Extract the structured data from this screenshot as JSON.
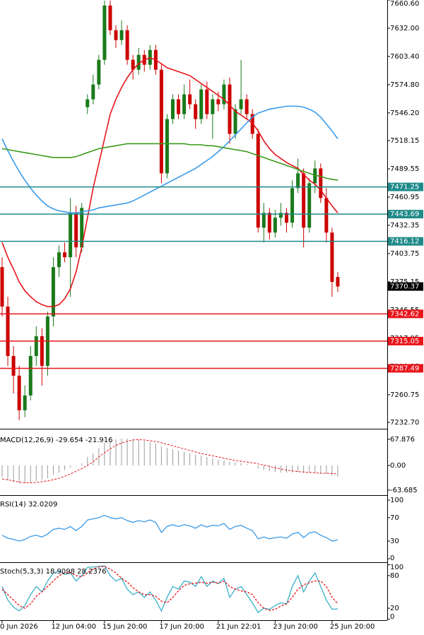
{
  "chart_data": [
    {
      "type": "candlestick",
      "categories": [
        "0 Jun 2026",
        null,
        null,
        null,
        null,
        null,
        null,
        null,
        null,
        "12 Jun 04:00",
        null,
        null,
        null,
        null,
        null,
        null,
        null,
        null,
        "15 Jun 20:00",
        null,
        null,
        null,
        null,
        null,
        null,
        null,
        null,
        null,
        "17 Jun 20:00",
        null,
        null,
        null,
        null,
        null,
        null,
        null,
        null,
        null,
        "21 Jun 22:01",
        null,
        null,
        null,
        null,
        null,
        null,
        null,
        null,
        null,
        "23 Jun 20:00",
        null,
        null,
        null,
        null,
        null,
        null,
        null,
        null,
        null,
        "25 Jun 20:00",
        null
      ],
      "open": [
        7390,
        7350,
        7300,
        7280,
        7245,
        7260,
        7300,
        7320,
        7290,
        7340,
        7390,
        7405,
        7400,
        7445,
        7410,
        7552,
        7560,
        7575,
        7600,
        7655,
        7630,
        7620,
        7630,
        7600,
        7590,
        7605,
        7595,
        7610,
        7590,
        7485,
        7540,
        7560,
        7545,
        7565,
        7555,
        7540,
        7570,
        7545,
        7560,
        7555,
        7575,
        7525,
        7550,
        7560,
        7545,
        7525,
        7430,
        7445,
        7425,
        7440,
        7445,
        7435,
        7470,
        7485,
        7430,
        7475,
        7490,
        7460,
        7425,
        7380
      ],
      "high": [
        7400,
        7360,
        7310,
        7290,
        7270,
        7310,
        7330,
        7328,
        7345,
        7400,
        7412,
        7415,
        7460,
        7452,
        7455,
        7565,
        7585,
        7605,
        7660,
        7660,
        7635,
        7640,
        7635,
        7605,
        7612,
        7610,
        7615,
        7615,
        7595,
        7545,
        7565,
        7565,
        7575,
        7580,
        7560,
        7575,
        7578,
        7565,
        7568,
        7580,
        7582,
        7555,
        7600,
        7565,
        7550,
        7530,
        7455,
        7450,
        7448,
        7455,
        7450,
        7478,
        7500,
        7490,
        7480,
        7498,
        7495,
        7470,
        7430,
        7385
      ],
      "low": [
        7340,
        7290,
        7262,
        7235,
        7238,
        7255,
        7290,
        7270,
        7280,
        7330,
        7380,
        7395,
        7360,
        7400,
        7405,
        7545,
        7555,
        7570,
        7595,
        7625,
        7612,
        7615,
        7595,
        7580,
        7585,
        7588,
        7590,
        7585,
        7475,
        7480,
        7535,
        7540,
        7540,
        7550,
        7530,
        7535,
        7540,
        7520,
        7548,
        7550,
        7515,
        7520,
        7545,
        7540,
        7520,
        7425,
        7415,
        7418,
        7420,
        7432,
        7425,
        7430,
        7465,
        7410,
        7425,
        7465,
        7455,
        7415,
        7360,
        7365
      ],
      "close": [
        7350,
        7300,
        7280,
        7245,
        7260,
        7300,
        7320,
        7290,
        7340,
        7390,
        7405,
        7400,
        7445,
        7410,
        7450,
        7560,
        7575,
        7600,
        7655,
        7630,
        7620,
        7630,
        7600,
        7590,
        7605,
        7595,
        7610,
        7590,
        7485,
        7540,
        7560,
        7545,
        7565,
        7555,
        7540,
        7570,
        7545,
        7560,
        7555,
        7575,
        7525,
        7550,
        7560,
        7545,
        7525,
        7430,
        7445,
        7425,
        7440,
        7445,
        7435,
        7470,
        7485,
        7430,
        7475,
        7490,
        7460,
        7425,
        7375,
        7370.37
      ],
      "up_color": "#1a7a1a",
      "down_color": "#cc0000",
      "series": [
        {
          "color": "#e8141a",
          "values": [
            7415,
            7400,
            7388,
            7375,
            7366,
            7360,
            7355,
            7352,
            7350,
            7350,
            7352,
            7358,
            7368,
            7385,
            7410,
            7440,
            7470,
            7495,
            7520,
            7545,
            7560,
            7572,
            7582,
            7590,
            7596,
            7600,
            7602,
            7600,
            7596,
            7592,
            7590,
            7588,
            7586,
            7584,
            7580,
            7576,
            7572,
            7568,
            7564,
            7560,
            7554,
            7548,
            7544,
            7540,
            7536,
            7528,
            7518,
            7510,
            7504,
            7500,
            7496,
            7493,
            7490,
            7484,
            7478,
            7474,
            7468,
            7460,
            7452,
            7445
          ]
        },
        {
          "color": "#3a9ae8",
          "values": [
            7520,
            7508,
            7497,
            7487,
            7478,
            7470,
            7463,
            7457,
            7452,
            7449,
            7447,
            7446,
            7445,
            7445,
            7446,
            7447,
            7448,
            7450,
            7451,
            7452,
            7453,
            7454,
            7455,
            7457,
            7460,
            7463,
            7466,
            7469,
            7472,
            7475,
            7478,
            7481,
            7484,
            7487,
            7490,
            7494,
            7498,
            7502,
            7507,
            7512,
            7518,
            7524,
            7530,
            7536,
            7542,
            7546,
            7548,
            7550,
            7551,
            7552,
            7553,
            7553,
            7553,
            7552,
            7550,
            7547,
            7542,
            7535,
            7528,
            7520
          ]
        },
        {
          "color": "#3a9a1a",
          "values": [
            7510,
            7509,
            7508,
            7507,
            7506,
            7505,
            7504,
            7503,
            7502,
            7501,
            7501,
            7501,
            7501,
            7502,
            7504,
            7506,
            7508,
            7510,
            7511,
            7512,
            7513,
            7514,
            7515,
            7515,
            7515,
            7515,
            7515,
            7515,
            7515,
            7515,
            7515,
            7515,
            7515,
            7514,
            7514,
            7514,
            7513,
            7513,
            7512,
            7511,
            7510,
            7509,
            7508,
            7507,
            7505,
            7503,
            7501,
            7499,
            7497,
            7495,
            7493,
            7491,
            7489,
            7487,
            7485,
            7483,
            7482,
            7480,
            7479,
            7478
          ]
        }
      ],
      "levels": [
        {
          "value": 7471.25,
          "color": "#1f8a8a"
        },
        {
          "value": 7443.69,
          "color": "#1f8a8a"
        },
        {
          "value": 7416.12,
          "color": "#1f8a8a"
        },
        {
          "value": 7342.62,
          "color": "#e8141a"
        },
        {
          "value": 7315.05,
          "color": "#e8141a"
        },
        {
          "value": 7287.49,
          "color": "#e8141a"
        }
      ],
      "current_price": 7370.37,
      "ylim": [
        7227.7,
        7660.6
      ],
      "yticks": [
        {
          "value": 7660.6,
          "label": "7660.60"
        },
        {
          "value": 7632,
          "label": "7632.00"
        },
        {
          "value": 7603.4,
          "label": "7603.40"
        },
        {
          "value": 7574.8,
          "label": "7574.80"
        },
        {
          "value": 7546.2,
          "label": "7546.20"
        },
        {
          "value": 7518.15,
          "label": "7518.15"
        },
        {
          "value": 7489.55,
          "label": "7489.55"
        },
        {
          "value": 7460.95,
          "label": "7460.95"
        },
        {
          "value": 7432.35,
          "label": "7432.35"
        },
        {
          "value": 7403.75,
          "label": "7403.75"
        },
        {
          "value": 7375.15,
          "label": "7375.15"
        },
        {
          "value": 7346.55,
          "label": "7346.55"
        },
        {
          "value": 7317.95,
          "label": "7317.95"
        },
        {
          "value": 7289.35,
          "label": "7289.35"
        },
        {
          "value": 7260.75,
          "label": "7260.75"
        },
        {
          "value": 7232.7,
          "label": "7232.70"
        }
      ]
    },
    {
      "type": "macd",
      "title": "MACD(12,26,9) -29.654 -21.916",
      "series": [
        {
          "color": "#9a9a9a",
          "values": [
            -30,
            -38,
            -43,
            -46,
            -46,
            -44,
            -40,
            -37,
            -33,
            -25,
            -18,
            -12,
            -5,
            0,
            5,
            22,
            32,
            45,
            58,
            63,
            68,
            70,
            70,
            68,
            66,
            63,
            60,
            57,
            50,
            45,
            42,
            38,
            35,
            32,
            28,
            25,
            22,
            18,
            15,
            13,
            10,
            8,
            6,
            3,
            0,
            -8,
            -12,
            -15,
            -17,
            -18,
            -19,
            -18,
            -17,
            -19,
            -18,
            -18,
            -19,
            -22,
            -26,
            -29.654
          ]
        },
        {
          "color": "#e8141a",
          "values": [
            -35,
            -37,
            -40,
            -43,
            -45,
            -45,
            -44,
            -42,
            -40,
            -37,
            -33,
            -28,
            -22,
            -15,
            -8,
            0,
            10,
            22,
            33,
            43,
            52,
            58,
            63,
            66,
            67,
            66,
            64,
            62,
            59,
            55,
            51,
            47,
            43,
            39,
            35,
            31,
            28,
            25,
            22,
            19,
            16,
            13,
            11,
            9,
            7,
            4,
            1,
            -2,
            -6,
            -9,
            -12,
            -14,
            -16,
            -17,
            -18,
            -19,
            -20,
            -20,
            -21,
            -21.916
          ]
        }
      ],
      "ylim": [
        -75,
        86
      ],
      "yticks": [
        67.876,
        {
          "value": 0,
          "label": "0.00"
        },
        -63.685
      ]
    },
    {
      "type": "line",
      "title": "RSI(14) 32.0209",
      "series": [
        {
          "color": "#3a9ae8",
          "values": [
            40,
            35,
            33,
            30,
            33,
            38,
            40,
            37,
            42,
            50,
            52,
            50,
            55,
            48,
            55,
            66,
            68,
            70,
            74,
            70,
            68,
            70,
            65,
            62,
            65,
            63,
            66,
            62,
            45,
            55,
            58,
            55,
            58,
            56,
            52,
            58,
            54,
            57,
            56,
            60,
            50,
            55,
            57,
            52,
            48,
            34,
            37,
            34,
            36,
            37,
            35,
            42,
            45,
            36,
            44,
            46,
            40,
            36,
            30,
            32.0209
          ]
        }
      ],
      "ylim": [
        -4.8,
        106
      ],
      "yticks": [
        100,
        70,
        30,
        0
      ]
    },
    {
      "type": "line",
      "title": "Stoch(5,3,3) 18.9098 28.2376",
      "series": [
        {
          "color": "#3ab0c8",
          "values": [
            60,
            35,
            22,
            15,
            25,
            45,
            60,
            50,
            70,
            85,
            88,
            82,
            85,
            70,
            80,
            95,
            96,
            97,
            98,
            80,
            70,
            75,
            55,
            45,
            50,
            40,
            50,
            35,
            15,
            40,
            60,
            55,
            70,
            68,
            60,
            78,
            60,
            70,
            65,
            75,
            40,
            55,
            60,
            45,
            30,
            12,
            20,
            18,
            25,
            30,
            28,
            60,
            80,
            50,
            70,
            85,
            60,
            35,
            18,
            18.9098
          ]
        },
        {
          "color": "#e8141a",
          "dashed": true,
          "values": [
            55,
            45,
            35,
            25,
            20,
            28,
            42,
            50,
            60,
            70,
            80,
            85,
            85,
            80,
            78,
            85,
            92,
            96,
            97,
            92,
            85,
            75,
            68,
            58,
            50,
            45,
            45,
            42,
            33,
            30,
            40,
            52,
            62,
            65,
            66,
            68,
            66,
            68,
            66,
            70,
            60,
            55,
            52,
            50,
            45,
            30,
            20,
            16,
            18,
            24,
            28,
            40,
            55,
            63,
            67,
            70,
            70,
            60,
            40,
            28.2376
          ]
        }
      ],
      "ylim": [
        -2,
        102
      ],
      "yticks": [
        100,
        80,
        20,
        0
      ]
    }
  ]
}
